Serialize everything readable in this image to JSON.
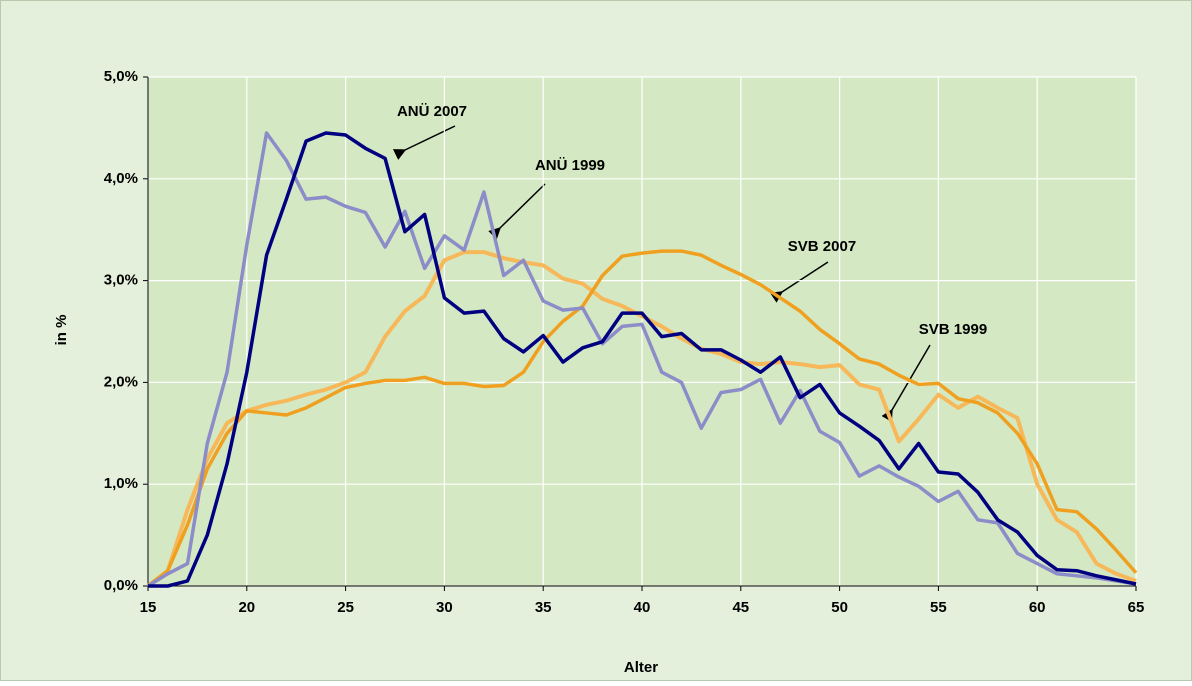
{
  "chart_data": {
    "type": "line",
    "x_label": "Alter",
    "y_label": "in %",
    "x": [
      15,
      16,
      17,
      18,
      19,
      20,
      21,
      22,
      23,
      24,
      25,
      26,
      27,
      28,
      29,
      30,
      31,
      32,
      33,
      34,
      35,
      36,
      37,
      38,
      39,
      40,
      41,
      42,
      43,
      44,
      45,
      46,
      47,
      48,
      49,
      50,
      51,
      52,
      53,
      54,
      55,
      56,
      57,
      58,
      59,
      60,
      61,
      62,
      63,
      64,
      65
    ],
    "xlim": [
      15,
      65
    ],
    "xticks": [
      15,
      20,
      25,
      30,
      35,
      40,
      45,
      50,
      55,
      60,
      65
    ],
    "ylim": [
      0,
      5
    ],
    "yticks": [
      {
        "value": 0,
        "label": "0,0%"
      },
      {
        "value": 1,
        "label": "1,0%"
      },
      {
        "value": 2,
        "label": "2,0%"
      },
      {
        "value": 3,
        "label": "3,0%"
      },
      {
        "value": 4,
        "label": "4,0%"
      },
      {
        "value": 5,
        "label": "5,0%"
      }
    ],
    "grid": true,
    "series": [
      {
        "name": "ANÜ 2007",
        "color": "#000080",
        "values": [
          0,
          0,
          0.05,
          0.5,
          1.2,
          2.1,
          3.25,
          3.8,
          4.37,
          4.45,
          4.43,
          4.3,
          4.2,
          3.48,
          3.65,
          2.83,
          2.68,
          2.7,
          2.43,
          2.3,
          2.46,
          2.2,
          2.34,
          2.4,
          2.68,
          2.68,
          2.45,
          2.48,
          2.32,
          2.32,
          2.22,
          2.1,
          2.25,
          1.85,
          1.98,
          1.7,
          1.57,
          1.43,
          1.15,
          1.4,
          1.12,
          1.1,
          0.92,
          0.65,
          0.53,
          0.3,
          0.16,
          0.15,
          0.1,
          0.06,
          0.02
        ]
      },
      {
        "name": "ANÜ 1999",
        "color": "#8c8cc8",
        "values": [
          0,
          0.12,
          0.22,
          1.4,
          2.1,
          3.35,
          4.45,
          4.18,
          3.8,
          3.82,
          3.73,
          3.67,
          3.33,
          3.68,
          3.12,
          3.44,
          3.3,
          3.87,
          3.05,
          3.2,
          2.8,
          2.71,
          2.73,
          2.38,
          2.55,
          2.57,
          2.1,
          2.0,
          1.55,
          1.9,
          1.93,
          2.03,
          1.6,
          1.92,
          1.52,
          1.41,
          1.08,
          1.18,
          1.07,
          0.98,
          0.83,
          0.93,
          0.65,
          0.62,
          0.32,
          0.22,
          0.12,
          0.1,
          0.08,
          0.05,
          0.02
        ]
      },
      {
        "name": "SVB 2007",
        "color": "#f0a020",
        "values": [
          0,
          0.15,
          0.6,
          1.15,
          1.5,
          1.72,
          1.7,
          1.68,
          1.75,
          1.85,
          1.95,
          1.99,
          2.02,
          2.02,
          2.05,
          1.99,
          1.99,
          1.96,
          1.97,
          2.1,
          2.4,
          2.6,
          2.75,
          3.05,
          3.24,
          3.27,
          3.29,
          3.29,
          3.25,
          3.15,
          3.06,
          2.96,
          2.83,
          2.7,
          2.52,
          2.38,
          2.23,
          2.18,
          2.07,
          1.98,
          1.99,
          1.84,
          1.8,
          1.7,
          1.5,
          1.2,
          0.75,
          0.73,
          0.56,
          0.35,
          0.13
        ]
      },
      {
        "name": "SVB 1999",
        "color": "#f7b85a",
        "values": [
          0,
          0.15,
          0.75,
          1.25,
          1.6,
          1.72,
          1.78,
          1.82,
          1.88,
          1.93,
          2.0,
          2.1,
          2.45,
          2.7,
          2.85,
          3.2,
          3.28,
          3.28,
          3.22,
          3.18,
          3.15,
          3.02,
          2.97,
          2.82,
          2.75,
          2.65,
          2.55,
          2.43,
          2.33,
          2.28,
          2.2,
          2.18,
          2.2,
          2.18,
          2.15,
          2.17,
          1.98,
          1.93,
          1.42,
          1.64,
          1.88,
          1.75,
          1.86,
          1.75,
          1.65,
          1.0,
          0.65,
          0.53,
          0.22,
          0.12,
          0.05
        ]
      }
    ]
  }
}
